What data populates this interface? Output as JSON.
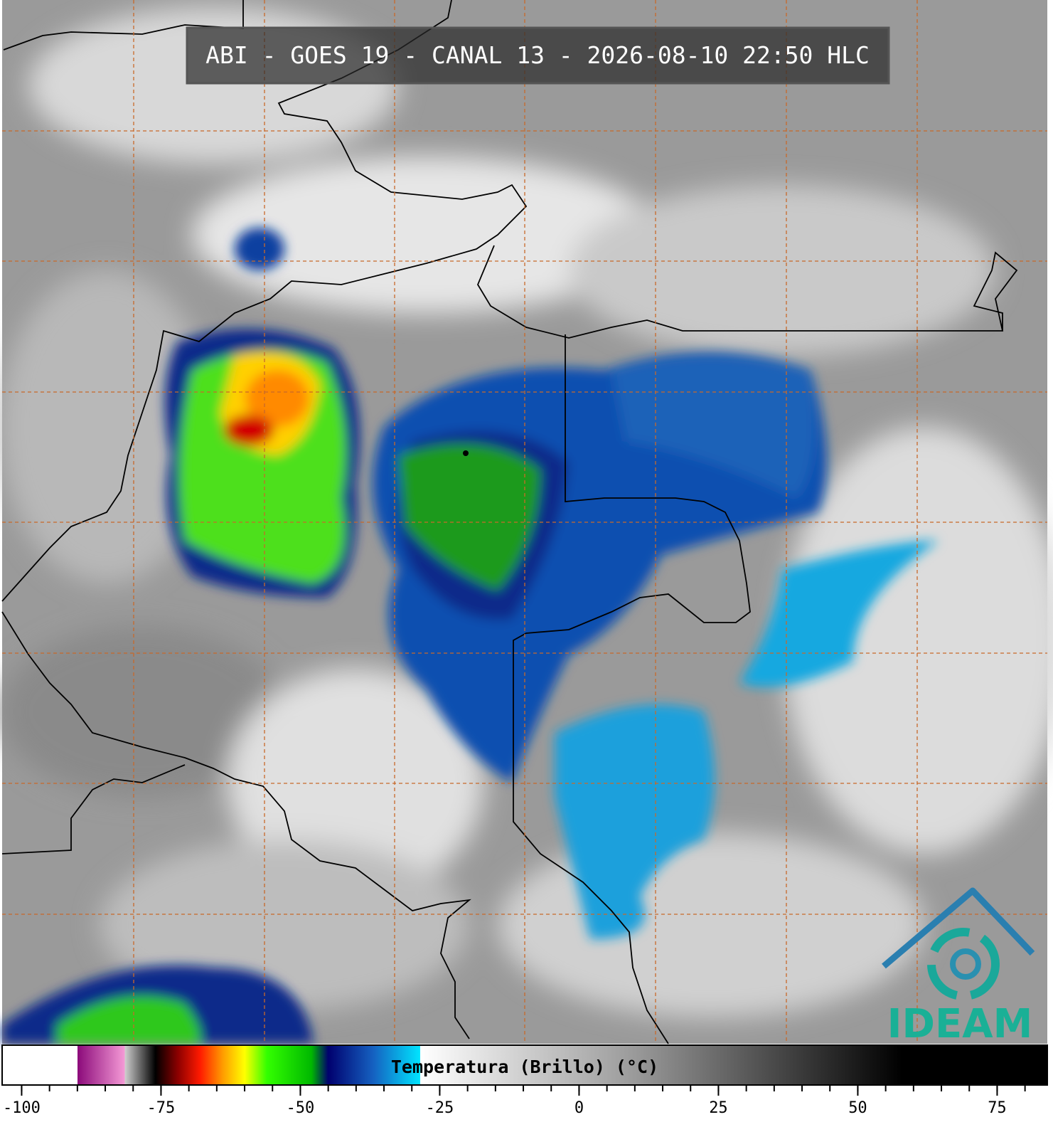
{
  "header": {
    "title": "ABI - GOES 19 - CANAL 13 - 2026-08-10 22:50 HLC"
  },
  "colorbar": {
    "label": "Temperatura (Brillo) (°C)",
    "xlim": [
      -103.5,
      84
    ],
    "ticks": [
      -100,
      -75,
      -50,
      -25,
      0,
      25,
      50,
      75
    ],
    "minor_tick_interval": 5,
    "colorscale": [
      {
        "value": -103.5,
        "color": "#ffffff"
      },
      {
        "value": -90,
        "color": "#ffffff"
      },
      {
        "value": -90,
        "color": "#8b0a7a"
      },
      {
        "value": -81.5,
        "color": "#f59ad6"
      },
      {
        "value": -81.5,
        "color": "#d0d0d0"
      },
      {
        "value": -76,
        "color": "#000000"
      },
      {
        "value": -72,
        "color": "#8b0000"
      },
      {
        "value": -68,
        "color": "#ff1a00"
      },
      {
        "value": -64,
        "color": "#ff9a00"
      },
      {
        "value": -60,
        "color": "#ffff00"
      },
      {
        "value": -56,
        "color": "#33ff00"
      },
      {
        "value": -48,
        "color": "#00b800"
      },
      {
        "value": -45,
        "color": "#00006e"
      },
      {
        "value": -37,
        "color": "#1560c0"
      },
      {
        "value": -28.5,
        "color": "#00e5ff"
      },
      {
        "value": -28.5,
        "color": "#ffffff"
      },
      {
        "value": 10,
        "color": "#9a9a9a"
      },
      {
        "value": 58,
        "color": "#000000"
      },
      {
        "value": 84,
        "color": "#000000"
      }
    ]
  },
  "logo": {
    "text": "IDEAM"
  }
}
